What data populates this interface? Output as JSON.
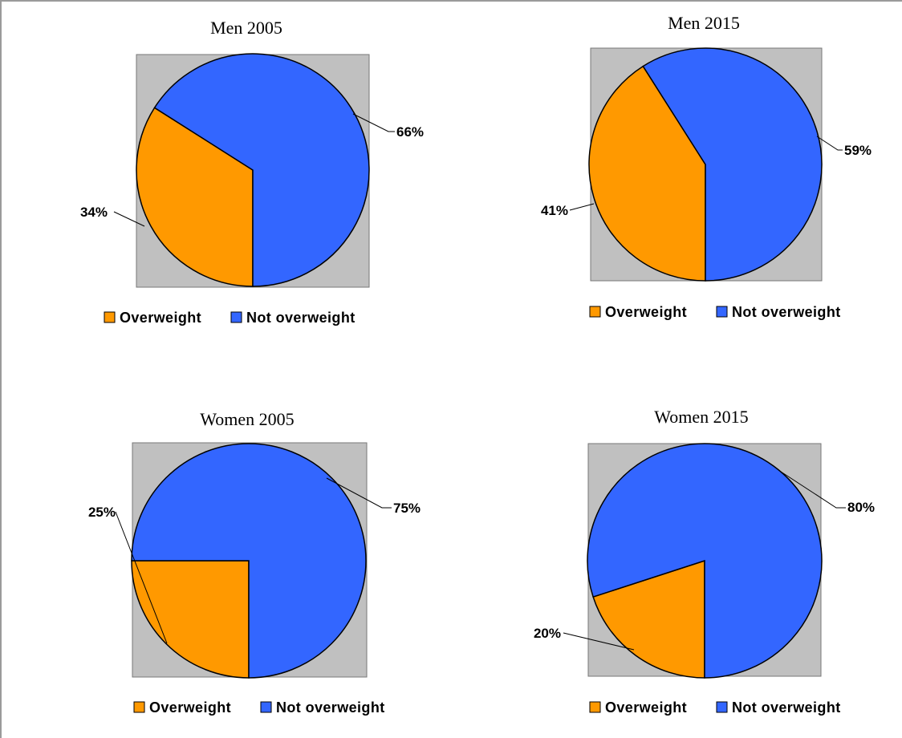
{
  "colors": {
    "overweight": "#FF9900",
    "not_overweight": "#3366FF",
    "plot_area": "#C0C0C0",
    "outline": "#000000"
  },
  "chart_data": [
    {
      "type": "pie",
      "title": "Men 2005",
      "categories": [
        "Overweight",
        "Not overweight"
      ],
      "values": [
        34,
        66
      ],
      "labels": [
        "34%",
        "66%"
      ],
      "legend": [
        "Overweight",
        "Not overweight"
      ],
      "legend_position": "bottom"
    },
    {
      "type": "pie",
      "title": "Men 2015",
      "categories": [
        "Overweight",
        "Not overweight"
      ],
      "values": [
        41,
        59
      ],
      "labels": [
        "41%",
        "59%"
      ],
      "legend": [
        "Overweight",
        "Not overweight"
      ],
      "legend_position": "bottom"
    },
    {
      "type": "pie",
      "title": "Women 2005",
      "categories": [
        "Overweight",
        "Not overweight"
      ],
      "values": [
        25,
        75
      ],
      "labels": [
        "25%",
        "75%"
      ],
      "legend": [
        "Overweight",
        "Not overweight"
      ],
      "legend_position": "bottom"
    },
    {
      "type": "pie",
      "title": "Women 2015",
      "categories": [
        "Overweight",
        "Not overweight"
      ],
      "values": [
        20,
        80
      ],
      "labels": [
        "20%",
        "80%"
      ],
      "legend": [
        "Overweight",
        "Not overweight"
      ],
      "legend_position": "bottom"
    }
  ]
}
